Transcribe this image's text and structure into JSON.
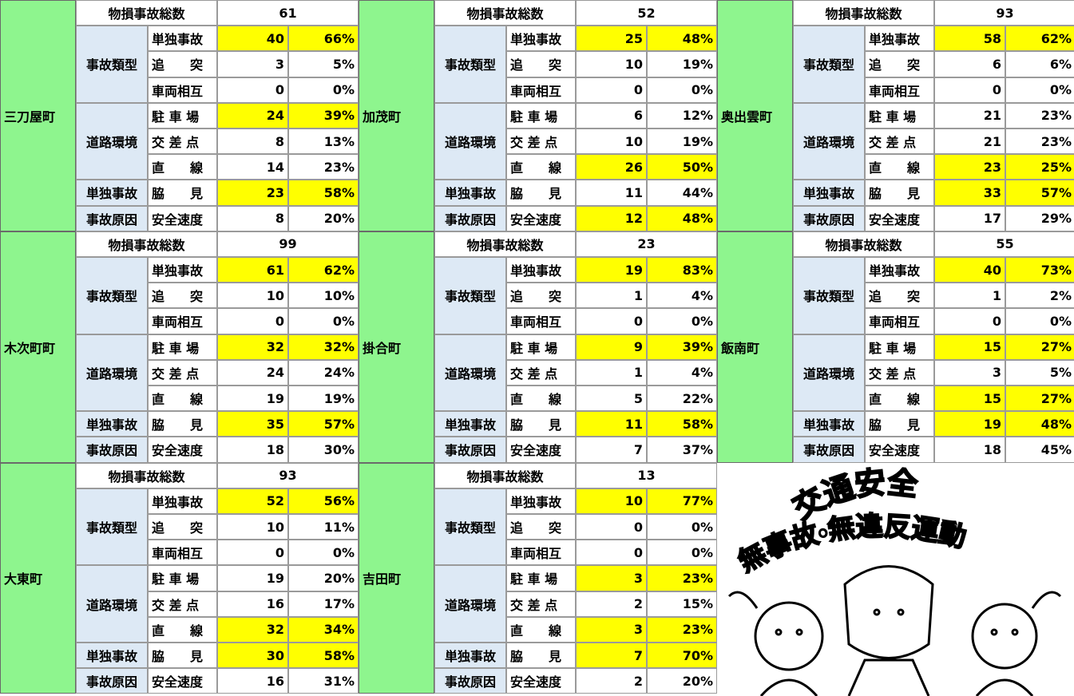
{
  "labels": {
    "header": "物損事故総数",
    "groups": [
      "事故類型",
      "道路環境",
      "単独事故",
      "事故原因"
    ],
    "items": [
      "単独事故",
      "追　　突",
      "車両相互",
      "駐 車 場",
      "交 差 点",
      "直　　線",
      "脇　　見",
      "安全速度"
    ]
  },
  "blocks": [
    {
      "town": "三刀屋町",
      "total": 61,
      "rows": [
        {
          "count": 40,
          "pct": "66%",
          "highlight": true
        },
        {
          "count": 3,
          "pct": "5%"
        },
        {
          "count": 0,
          "pct": "0%"
        },
        {
          "count": 24,
          "pct": "39%",
          "highlight": true
        },
        {
          "count": 8,
          "pct": "13%"
        },
        {
          "count": 14,
          "pct": "23%"
        },
        {
          "count": 23,
          "pct": "58%",
          "highlight": true
        },
        {
          "count": 8,
          "pct": "20%"
        }
      ]
    },
    {
      "town": "加茂町",
      "total": 52,
      "rows": [
        {
          "count": 25,
          "pct": "48%",
          "highlight": true
        },
        {
          "count": 10,
          "pct": "19%"
        },
        {
          "count": 0,
          "pct": "0%"
        },
        {
          "count": 6,
          "pct": "12%"
        },
        {
          "count": 10,
          "pct": "19%"
        },
        {
          "count": 26,
          "pct": "50%",
          "highlight": true
        },
        {
          "count": 11,
          "pct": "44%"
        },
        {
          "count": 12,
          "pct": "48%",
          "highlight": true
        }
      ]
    },
    {
      "town": "奥出雲町",
      "total": 93,
      "rows": [
        {
          "count": 58,
          "pct": "62%",
          "highlight": true
        },
        {
          "count": 6,
          "pct": "6%"
        },
        {
          "count": 0,
          "pct": "0%"
        },
        {
          "count": 21,
          "pct": "23%"
        },
        {
          "count": 21,
          "pct": "23%"
        },
        {
          "count": 23,
          "pct": "25%",
          "highlight": true
        },
        {
          "count": 33,
          "pct": "57%",
          "highlight": true
        },
        {
          "count": 17,
          "pct": "29%"
        }
      ]
    },
    {
      "town": "木次町町",
      "total": 99,
      "rows": [
        {
          "count": 61,
          "pct": "62%",
          "highlight": true
        },
        {
          "count": 10,
          "pct": "10%"
        },
        {
          "count": 0,
          "pct": "0%"
        },
        {
          "count": 32,
          "pct": "32%",
          "highlight": true
        },
        {
          "count": 24,
          "pct": "24%"
        },
        {
          "count": 19,
          "pct": "19%"
        },
        {
          "count": 35,
          "pct": "57%",
          "highlight": true
        },
        {
          "count": 18,
          "pct": "30%"
        }
      ]
    },
    {
      "town": "掛合町",
      "total": 23,
      "rows": [
        {
          "count": 19,
          "pct": "83%",
          "highlight": true
        },
        {
          "count": 1,
          "pct": "4%"
        },
        {
          "count": 0,
          "pct": "0%"
        },
        {
          "count": 9,
          "pct": "39%",
          "highlight": true
        },
        {
          "count": 1,
          "pct": "4%"
        },
        {
          "count": 5,
          "pct": "22%"
        },
        {
          "count": 11,
          "pct": "58%",
          "highlight": true
        },
        {
          "count": 7,
          "pct": "37%"
        }
      ]
    },
    {
      "town": "飯南町",
      "total": 55,
      "rows": [
        {
          "count": 40,
          "pct": "73%",
          "highlight": true
        },
        {
          "count": 1,
          "pct": "2%"
        },
        {
          "count": 0,
          "pct": "0%"
        },
        {
          "count": 15,
          "pct": "27%",
          "highlight": true
        },
        {
          "count": 3,
          "pct": "5%"
        },
        {
          "count": 15,
          "pct": "27%",
          "highlight": true
        },
        {
          "count": 19,
          "pct": "48%",
          "highlight": true
        },
        {
          "count": 18,
          "pct": "45%"
        }
      ]
    },
    {
      "town": "大東町",
      "total": 93,
      "rows": [
        {
          "count": 52,
          "pct": "56%",
          "highlight": true
        },
        {
          "count": 10,
          "pct": "11%"
        },
        {
          "count": 0,
          "pct": "0%"
        },
        {
          "count": 19,
          "pct": "20%"
        },
        {
          "count": 16,
          "pct": "17%"
        },
        {
          "count": 32,
          "pct": "34%",
          "highlight": true
        },
        {
          "count": 30,
          "pct": "58%",
          "highlight": true
        },
        {
          "count": 16,
          "pct": "31%"
        }
      ]
    },
    {
      "town": "吉田町",
      "total": 13,
      "rows": [
        {
          "count": 10,
          "pct": "77%",
          "highlight": true
        },
        {
          "count": 0,
          "pct": "0%"
        },
        {
          "count": 0,
          "pct": "0%"
        },
        {
          "count": 3,
          "pct": "23%",
          "highlight": true
        },
        {
          "count": 2,
          "pct": "15%"
        },
        {
          "count": 3,
          "pct": "23%",
          "highlight": true
        },
        {
          "count": 7,
          "pct": "70%",
          "highlight": true
        },
        {
          "count": 2,
          "pct": "20%"
        }
      ]
    }
  ],
  "poster": {
    "title": "交通安全",
    "slogan": "無事故・無違反運動"
  }
}
